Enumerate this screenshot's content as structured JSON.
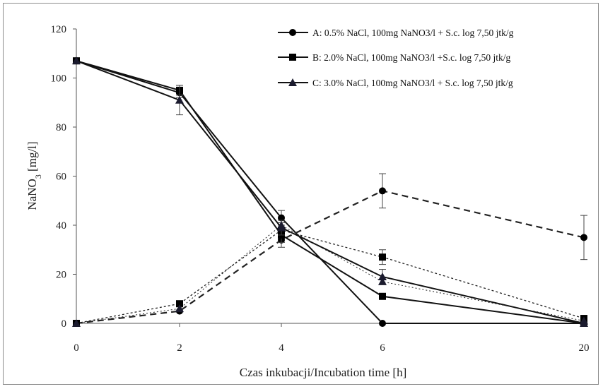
{
  "chart_data": {
    "type": "line",
    "xlabel": "Czas inkubacji/Incubation time [h]",
    "ylabel": "NaNO3 [mg/l]",
    "ylim": [
      0,
      120
    ],
    "y_ticks": [
      0,
      20,
      40,
      60,
      80,
      100,
      120
    ],
    "x_categories": [
      "0",
      "2",
      "4",
      "6",
      "20"
    ],
    "legend_position": "top-right",
    "grid": false,
    "series": [
      {
        "name": "A: 0.5% NaCl, 100mg NaNO3/l + S.c. log 7,50 jtk/g",
        "marker": "circle",
        "solid": [
          107,
          94,
          43,
          0,
          0
        ],
        "solid_err": [
          0,
          2,
          3,
          0,
          0
        ],
        "dashed": [
          0,
          5,
          34,
          54,
          35
        ],
        "dashed_err": [
          0,
          0,
          3,
          7,
          9
        ]
      },
      {
        "name": "B: 2.0% NaCl, 100mg NaNO3/l +S.c. log 7,50 jtk/g",
        "marker": "square",
        "solid": [
          107,
          95,
          36,
          11,
          0
        ],
        "solid_err": [
          0,
          2,
          3,
          0,
          0
        ],
        "dashed": [
          0,
          8,
          38,
          27,
          2
        ],
        "dashed_err": [
          0,
          0,
          3,
          3,
          0
        ]
      },
      {
        "name": "C: 3.0% NaCl, 100mg NaNO3/l + S.c. log 7,50 jtk/g",
        "marker": "triangle",
        "solid": [
          107,
          91,
          39,
          19,
          0
        ],
        "solid_err": [
          0,
          6,
          3,
          3,
          0
        ],
        "dashed": [
          0,
          6,
          40,
          17,
          1
        ],
        "dashed_err": [
          0,
          0,
          0,
          0,
          0
        ]
      }
    ]
  }
}
